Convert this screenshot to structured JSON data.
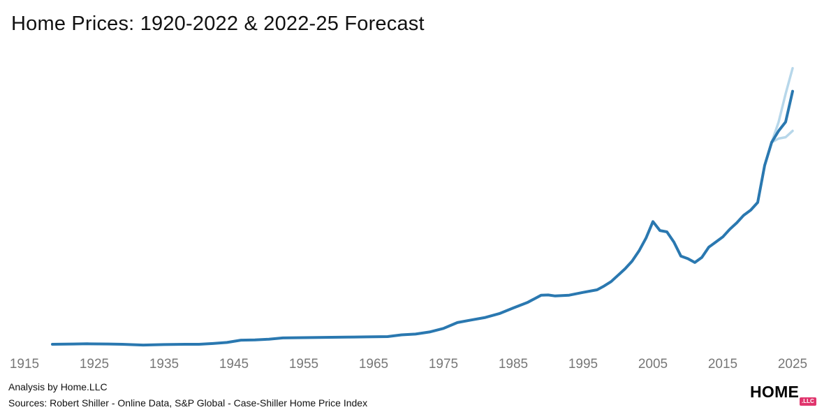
{
  "header": {
    "title": "Home Prices: 1920-2022 & 2022-25 Forecast"
  },
  "footer": {
    "analysis": "Analysis by Home.LLC",
    "sources": "Sources: Robert Shiller - Online Data, S&P Global - Case-Shiller Home Price Index"
  },
  "logo": {
    "text": "HOME",
    "badge": ".LLC"
  },
  "colors": {
    "main_line": "#2a78b0",
    "forecast_band": "#b7d7ea",
    "tick_text": "#777777",
    "logo_badge": "#e0356d"
  },
  "chart_data": {
    "type": "line",
    "title": "Home Prices: 1920-2022 & 2022-25 Forecast",
    "xlabel": "",
    "ylabel": "",
    "x_ticks": [
      "1915",
      "1925",
      "1935",
      "1945",
      "1955",
      "1965",
      "1975",
      "1985",
      "1995",
      "2005",
      "2015",
      "2025"
    ],
    "xlim": [
      1915,
      2027
    ],
    "ylim": [
      0,
      100
    ],
    "grid": false,
    "legend": "none",
    "series": [
      {
        "role": "historical",
        "x": [
          1919,
          1922,
          1924,
          1927,
          1929,
          1932,
          1935,
          1938,
          1940,
          1942,
          1944,
          1946,
          1948,
          1950,
          1952,
          1955,
          1958,
          1961,
          1964,
          1967,
          1969,
          1971,
          1973,
          1975,
          1977,
          1979,
          1981,
          1983,
          1985,
          1987,
          1989,
          1990,
          1991,
          1993,
          1995,
          1997,
          1998,
          1999,
          2000,
          2001,
          2002,
          2003,
          2004,
          2005,
          2006,
          2007,
          2008,
          2009,
          2010,
          2011,
          2012,
          2013,
          2014,
          2015,
          2016,
          2017,
          2018,
          2019,
          2020,
          2021,
          2022
        ],
        "y": [
          0.0,
          0.1,
          0.2,
          0.1,
          0.0,
          -0.3,
          -0.1,
          0.0,
          0.0,
          0.3,
          0.7,
          1.6,
          1.7,
          2.0,
          2.5,
          2.6,
          2.7,
          2.8,
          2.9,
          3.0,
          3.7,
          4.0,
          4.8,
          6.2,
          8.5,
          9.5,
          10.5,
          12.0,
          14.2,
          16.3,
          19.2,
          19.3,
          18.9,
          19.2,
          20.3,
          21.3,
          22.8,
          24.5,
          27.0,
          29.5,
          32.5,
          36.5,
          41.5,
          48.0,
          44.5,
          44.0,
          40.0,
          34.5,
          33.5,
          32.0,
          34.0,
          38.0,
          40.0,
          42.0,
          45.0,
          47.5,
          50.5,
          52.5,
          55.5,
          70.0,
          79.0
        ]
      },
      {
        "role": "forecast",
        "x": [
          2022,
          2023,
          2024,
          2025
        ],
        "y": [
          79.0,
          83.5,
          87.0,
          99.0
        ]
      },
      {
        "role": "forecast-high",
        "x": [
          2022,
          2023,
          2024,
          2025
        ],
        "y": [
          79.0,
          87.0,
          98.0,
          108.0
        ]
      },
      {
        "role": "forecast-low",
        "x": [
          2022,
          2023,
          2024,
          2025
        ],
        "y": [
          79.0,
          80.5,
          81.0,
          83.5
        ]
      }
    ]
  }
}
